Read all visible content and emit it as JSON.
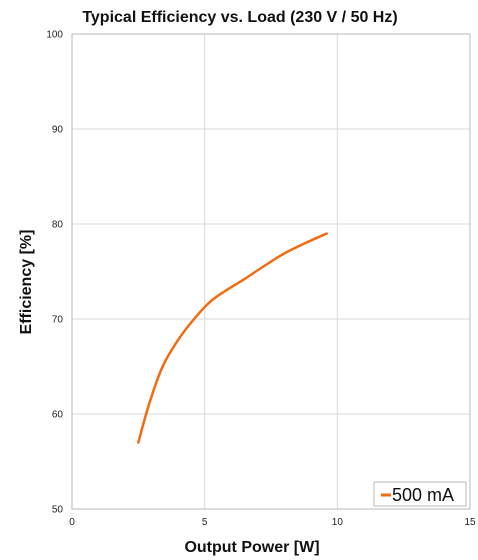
{
  "chart_data": {
    "type": "line",
    "title": "Typical Efficiency vs. Load (230 V / 50 Hz)",
    "xlabel": "Output Power [W]",
    "ylabel": "Efficiency [%]",
    "xlim": [
      0,
      15
    ],
    "ylim": [
      50,
      100
    ],
    "xticks": [
      0,
      5,
      10,
      15
    ],
    "yticks": [
      50,
      60,
      70,
      80,
      90,
      100
    ],
    "grid": true,
    "legend_position": "bottom-right",
    "series": [
      {
        "name": "500 mA",
        "color": "#f26b10",
        "x": [
          2.5,
          2.9,
          3.4,
          4.0,
          4.6,
          5.2,
          5.8,
          6.5,
          7.2,
          8.0,
          8.8,
          9.6
        ],
        "y": [
          57.0,
          61.0,
          64.9,
          67.8,
          70.0,
          71.8,
          73.0,
          74.2,
          75.5,
          76.9,
          78.0,
          79.0
        ]
      }
    ]
  }
}
